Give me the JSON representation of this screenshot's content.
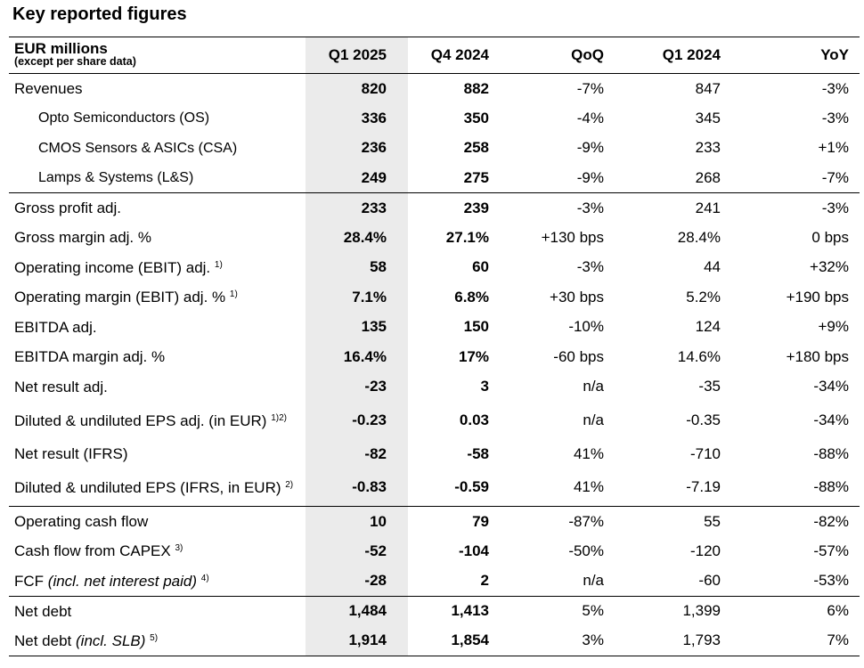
{
  "title": "Key reported figures",
  "header": {
    "label": "EUR millions",
    "sublabel": "(except per share data)",
    "cols": [
      "Q1 2025",
      "Q4 2024",
      "QoQ",
      "Q1 2024",
      "YoY"
    ]
  },
  "rows": [
    {
      "label": "Revenues",
      "sup": "",
      "values": [
        "820",
        "882",
        "-7%",
        "847",
        "-3%"
      ]
    },
    {
      "label": "Opto Semiconductors (OS)",
      "sup": "",
      "values": [
        "336",
        "350",
        "-4%",
        "345",
        "-3%"
      ]
    },
    {
      "label": "CMOS Sensors & ASICs (CSA)",
      "sup": "",
      "values": [
        "236",
        "258",
        "-9%",
        "233",
        "+1%"
      ]
    },
    {
      "label": "Lamps & Systems (L&S)",
      "sup": "",
      "values": [
        "249",
        "275",
        "-9%",
        "268",
        "-7%"
      ]
    },
    {
      "label": "Gross profit adj.",
      "sup": "",
      "values": [
        "233",
        "239",
        "-3%",
        "241",
        "-3%"
      ]
    },
    {
      "label": "Gross margin adj. %",
      "sup": "",
      "values": [
        "28.4%",
        "27.1%",
        "+130 bps",
        "28.4%",
        "0 bps"
      ]
    },
    {
      "label": "Operating income (EBIT) adj.",
      "sup": "1)",
      "values": [
        "58",
        "60",
        "-3%",
        "44",
        "+32%"
      ]
    },
    {
      "label": "Operating margin (EBIT) adj. %",
      "sup": "1)",
      "values": [
        "7.1%",
        "6.8%",
        "+30 bps",
        "5.2%",
        "+190 bps"
      ]
    },
    {
      "label": "EBITDA adj.",
      "sup": "",
      "values": [
        "135",
        "150",
        "-10%",
        "124",
        "+9%"
      ]
    },
    {
      "label": "EBITDA margin adj. %",
      "sup": "",
      "values": [
        "16.4%",
        "17%",
        "-60 bps",
        "14.6%",
        "+180 bps"
      ]
    },
    {
      "label": "Net result adj.",
      "sup": "",
      "values": [
        "-23",
        "3",
        "n/a",
        "-35",
        "-34%"
      ]
    },
    {
      "label": "Diluted & undiluted EPS adj. (in EUR)",
      "sup": "1)2)",
      "values": [
        "-0.23",
        "0.03",
        "n/a",
        "-0.35",
        "-34%"
      ]
    },
    {
      "label": "Net result (IFRS)",
      "sup": "",
      "values": [
        "-82",
        "-58",
        "41%",
        "-710",
        "-88%"
      ]
    },
    {
      "label": "Diluted & undiluted EPS (IFRS, in EUR)",
      "sup": "2)",
      "values": [
        "-0.83",
        "-0.59",
        "41%",
        "-7.19",
        "-88%"
      ]
    },
    {
      "label": "Operating cash flow",
      "sup": "",
      "values": [
        "10",
        "79",
        "-87%",
        "55",
        "-82%"
      ]
    },
    {
      "label": "Cash flow from CAPEX",
      "sup": "3)",
      "values": [
        "-52",
        "-104",
        "-50%",
        "-120",
        "-57%"
      ]
    },
    {
      "label": "FCF",
      "italic": "(incl. net interest paid)",
      "sup": "4)",
      "values": [
        "-28",
        "2",
        "n/a",
        "-60",
        "-53%"
      ]
    },
    {
      "label": "Net debt",
      "sup": "",
      "values": [
        "1,484",
        "1,413",
        "5%",
        "1,399",
        "6%"
      ]
    },
    {
      "label": "Net debt",
      "italic": "(incl. SLB)",
      "sup": "5)",
      "values": [
        "1,914",
        "1,854",
        "3%",
        "1,793",
        "7%"
      ]
    }
  ]
}
